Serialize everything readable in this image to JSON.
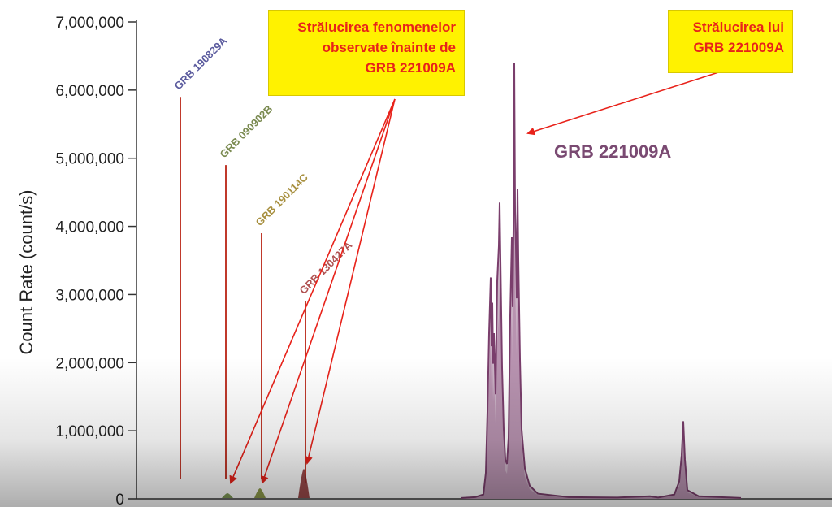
{
  "chart_data": {
    "type": "line",
    "ylabel": "Count Rate (count/s)",
    "yticks": [
      "0",
      "1,000,000",
      "2,000,000",
      "3,000,000",
      "4,000,000",
      "5,000,000",
      "6,000,000",
      "7,000,000"
    ],
    "ylim": [
      0,
      7000000
    ],
    "grid": false,
    "labeled_grbs": [
      {
        "name": "GRB 190829A",
        "peak": 5900000,
        "color": "#5b5b9e"
      },
      {
        "name": "GRB 090902B",
        "peak": 4900000,
        "color": "#7a8a50"
      },
      {
        "name": "GRB 190114C",
        "peak": 3900000,
        "color": "#a89040"
      },
      {
        "name": "GRB 130427A",
        "peak": 2900000,
        "color": "#b05050"
      }
    ],
    "main_event": {
      "name": "GRB 221009A",
      "peak": 6400000,
      "secondary_peaks": [
        4550000,
        4350000,
        3250000,
        1140000
      ],
      "color": "#7a3e6c"
    }
  },
  "annotations": {
    "left_callout": [
      "Strălucirea  fenomenelor",
      "observate înainte de",
      "GRB 221009A"
    ],
    "right_callout": [
      "Strălucirea  lui",
      "GRB 221009A"
    ],
    "arrow_color": "#e8221a",
    "callout_bg": "#fff200"
  }
}
